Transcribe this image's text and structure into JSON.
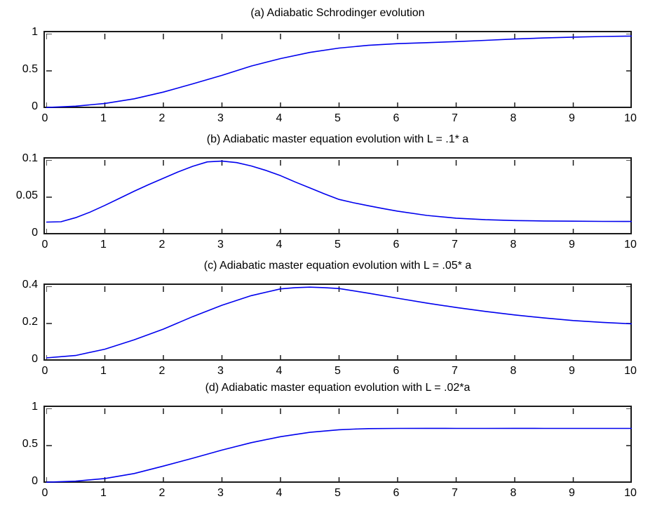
{
  "figure": {
    "background_color": "#ffffff",
    "axis_color": "#1a1a1a",
    "curve_color": "#0000ee",
    "panel_count": 4
  },
  "chart_data": [
    {
      "type": "line",
      "title": "(a) Adiabatic Schrodinger evolution",
      "xlabel": "",
      "ylabel": "",
      "xlim": [
        0,
        10
      ],
      "ylim": [
        0,
        1
      ],
      "x_ticks": [
        0,
        1,
        2,
        3,
        4,
        5,
        6,
        7,
        8,
        9,
        10
      ],
      "x_tick_labels": [
        "0",
        "1",
        "2",
        "3",
        "4",
        "5",
        "6",
        "7",
        "8",
        "9",
        "10"
      ],
      "y_ticks": [
        0,
        0.5,
        1
      ],
      "y_tick_labels": [
        "0",
        "0.5",
        "1"
      ],
      "grid": false,
      "legend": null,
      "line_color": "#0000ee",
      "x": [
        0,
        0.5,
        1,
        1.5,
        2,
        2.5,
        3,
        3.5,
        4,
        4.5,
        5,
        5.5,
        6,
        6.5,
        7,
        7.5,
        8,
        8.5,
        9,
        9.5,
        10
      ],
      "y": [
        0.008,
        0.025,
        0.062,
        0.125,
        0.215,
        0.325,
        0.44,
        0.565,
        0.665,
        0.748,
        0.807,
        0.843,
        0.866,
        0.879,
        0.893,
        0.91,
        0.928,
        0.942,
        0.954,
        0.962,
        0.968
      ]
    },
    {
      "type": "line",
      "title": "(b) Adiabatic master equation evolution with L = .1* a",
      "xlabel": "",
      "ylabel": "",
      "xlim": [
        0,
        10
      ],
      "ylim": [
        0,
        0.1
      ],
      "x_ticks": [
        0,
        1,
        2,
        3,
        4,
        5,
        6,
        7,
        8,
        9,
        10
      ],
      "x_tick_labels": [
        "0",
        "1",
        "2",
        "3",
        "4",
        "5",
        "6",
        "7",
        "8",
        "9",
        "10"
      ],
      "y_ticks": [
        0,
        0.05,
        0.1
      ],
      "y_tick_labels": [
        "0",
        "0.05",
        "0.1"
      ],
      "grid": false,
      "legend": null,
      "line_color": "#0000ee",
      "x": [
        0,
        0.25,
        0.5,
        0.75,
        1,
        1.25,
        1.5,
        1.75,
        2,
        2.25,
        2.5,
        2.75,
        3,
        3.25,
        3.5,
        3.75,
        4,
        4.25,
        4.5,
        4.75,
        5,
        5.25,
        5.5,
        5.75,
        6,
        6.5,
        7,
        7.5,
        8,
        8.5,
        9,
        9.5,
        10
      ],
      "y": [
        0.0165,
        0.017,
        0.0225,
        0.03,
        0.039,
        0.0485,
        0.058,
        0.067,
        0.0755,
        0.084,
        0.0915,
        0.0975,
        0.0985,
        0.0965,
        0.092,
        0.086,
        0.079,
        0.0705,
        0.0625,
        0.0545,
        0.047,
        0.0425,
        0.0385,
        0.0347,
        0.0312,
        0.0255,
        0.0218,
        0.0197,
        0.0186,
        0.018,
        0.0177,
        0.0175,
        0.0174
      ]
    },
    {
      "type": "line",
      "title": "(c) Adiabatic master equation evolution with L = .05* a",
      "xlabel": "",
      "ylabel": "",
      "xlim": [
        0,
        10
      ],
      "ylim": [
        0,
        0.4
      ],
      "x_ticks": [
        0,
        1,
        2,
        3,
        4,
        5,
        6,
        7,
        8,
        9,
        10
      ],
      "x_tick_labels": [
        "0",
        "1",
        "2",
        "3",
        "4",
        "5",
        "6",
        "7",
        "8",
        "9",
        "10"
      ],
      "y_ticks": [
        0,
        0.2,
        0.4
      ],
      "y_tick_labels": [
        "0",
        "0.2",
        "0.4"
      ],
      "grid": false,
      "legend": null,
      "line_color": "#0000ee",
      "x": [
        0,
        0.5,
        1,
        1.5,
        2,
        2.5,
        3,
        3.5,
        4,
        4.25,
        4.5,
        4.75,
        5,
        5.5,
        6,
        6.5,
        7,
        7.5,
        8,
        8.5,
        9,
        9.5,
        10
      ],
      "y": [
        0.015,
        0.028,
        0.062,
        0.112,
        0.17,
        0.237,
        0.298,
        0.35,
        0.386,
        0.393,
        0.3955,
        0.393,
        0.388,
        0.363,
        0.336,
        0.31,
        0.286,
        0.265,
        0.246,
        0.23,
        0.216,
        0.206,
        0.198
      ]
    },
    {
      "type": "line",
      "title": "(d) Adiabatic master equation evolution with L = .02*a",
      "xlabel": "",
      "ylabel": "",
      "xlim": [
        0,
        10
      ],
      "ylim": [
        0,
        1
      ],
      "x_ticks": [
        0,
        1,
        2,
        3,
        4,
        5,
        6,
        7,
        8,
        9,
        10
      ],
      "x_tick_labels": [
        "0",
        "1",
        "2",
        "3",
        "4",
        "5",
        "6",
        "7",
        "8",
        "9",
        "10"
      ],
      "y_ticks": [
        0,
        0.5,
        1
      ],
      "y_tick_labels": [
        "0",
        "0.5",
        "1"
      ],
      "grid": false,
      "legend": null,
      "line_color": "#0000ee",
      "x": [
        0,
        0.5,
        1,
        1.5,
        2,
        2.5,
        3,
        3.5,
        4,
        4.5,
        5,
        5.25,
        5.5,
        6,
        6.5,
        7,
        7.5,
        8,
        8.5,
        9,
        9.5,
        10
      ],
      "y": [
        0.008,
        0.022,
        0.058,
        0.125,
        0.225,
        0.33,
        0.44,
        0.54,
        0.62,
        0.678,
        0.713,
        0.722,
        0.728,
        0.731,
        0.732,
        0.731,
        0.731,
        0.732,
        0.731,
        0.731,
        0.731,
        0.731
      ]
    }
  ]
}
